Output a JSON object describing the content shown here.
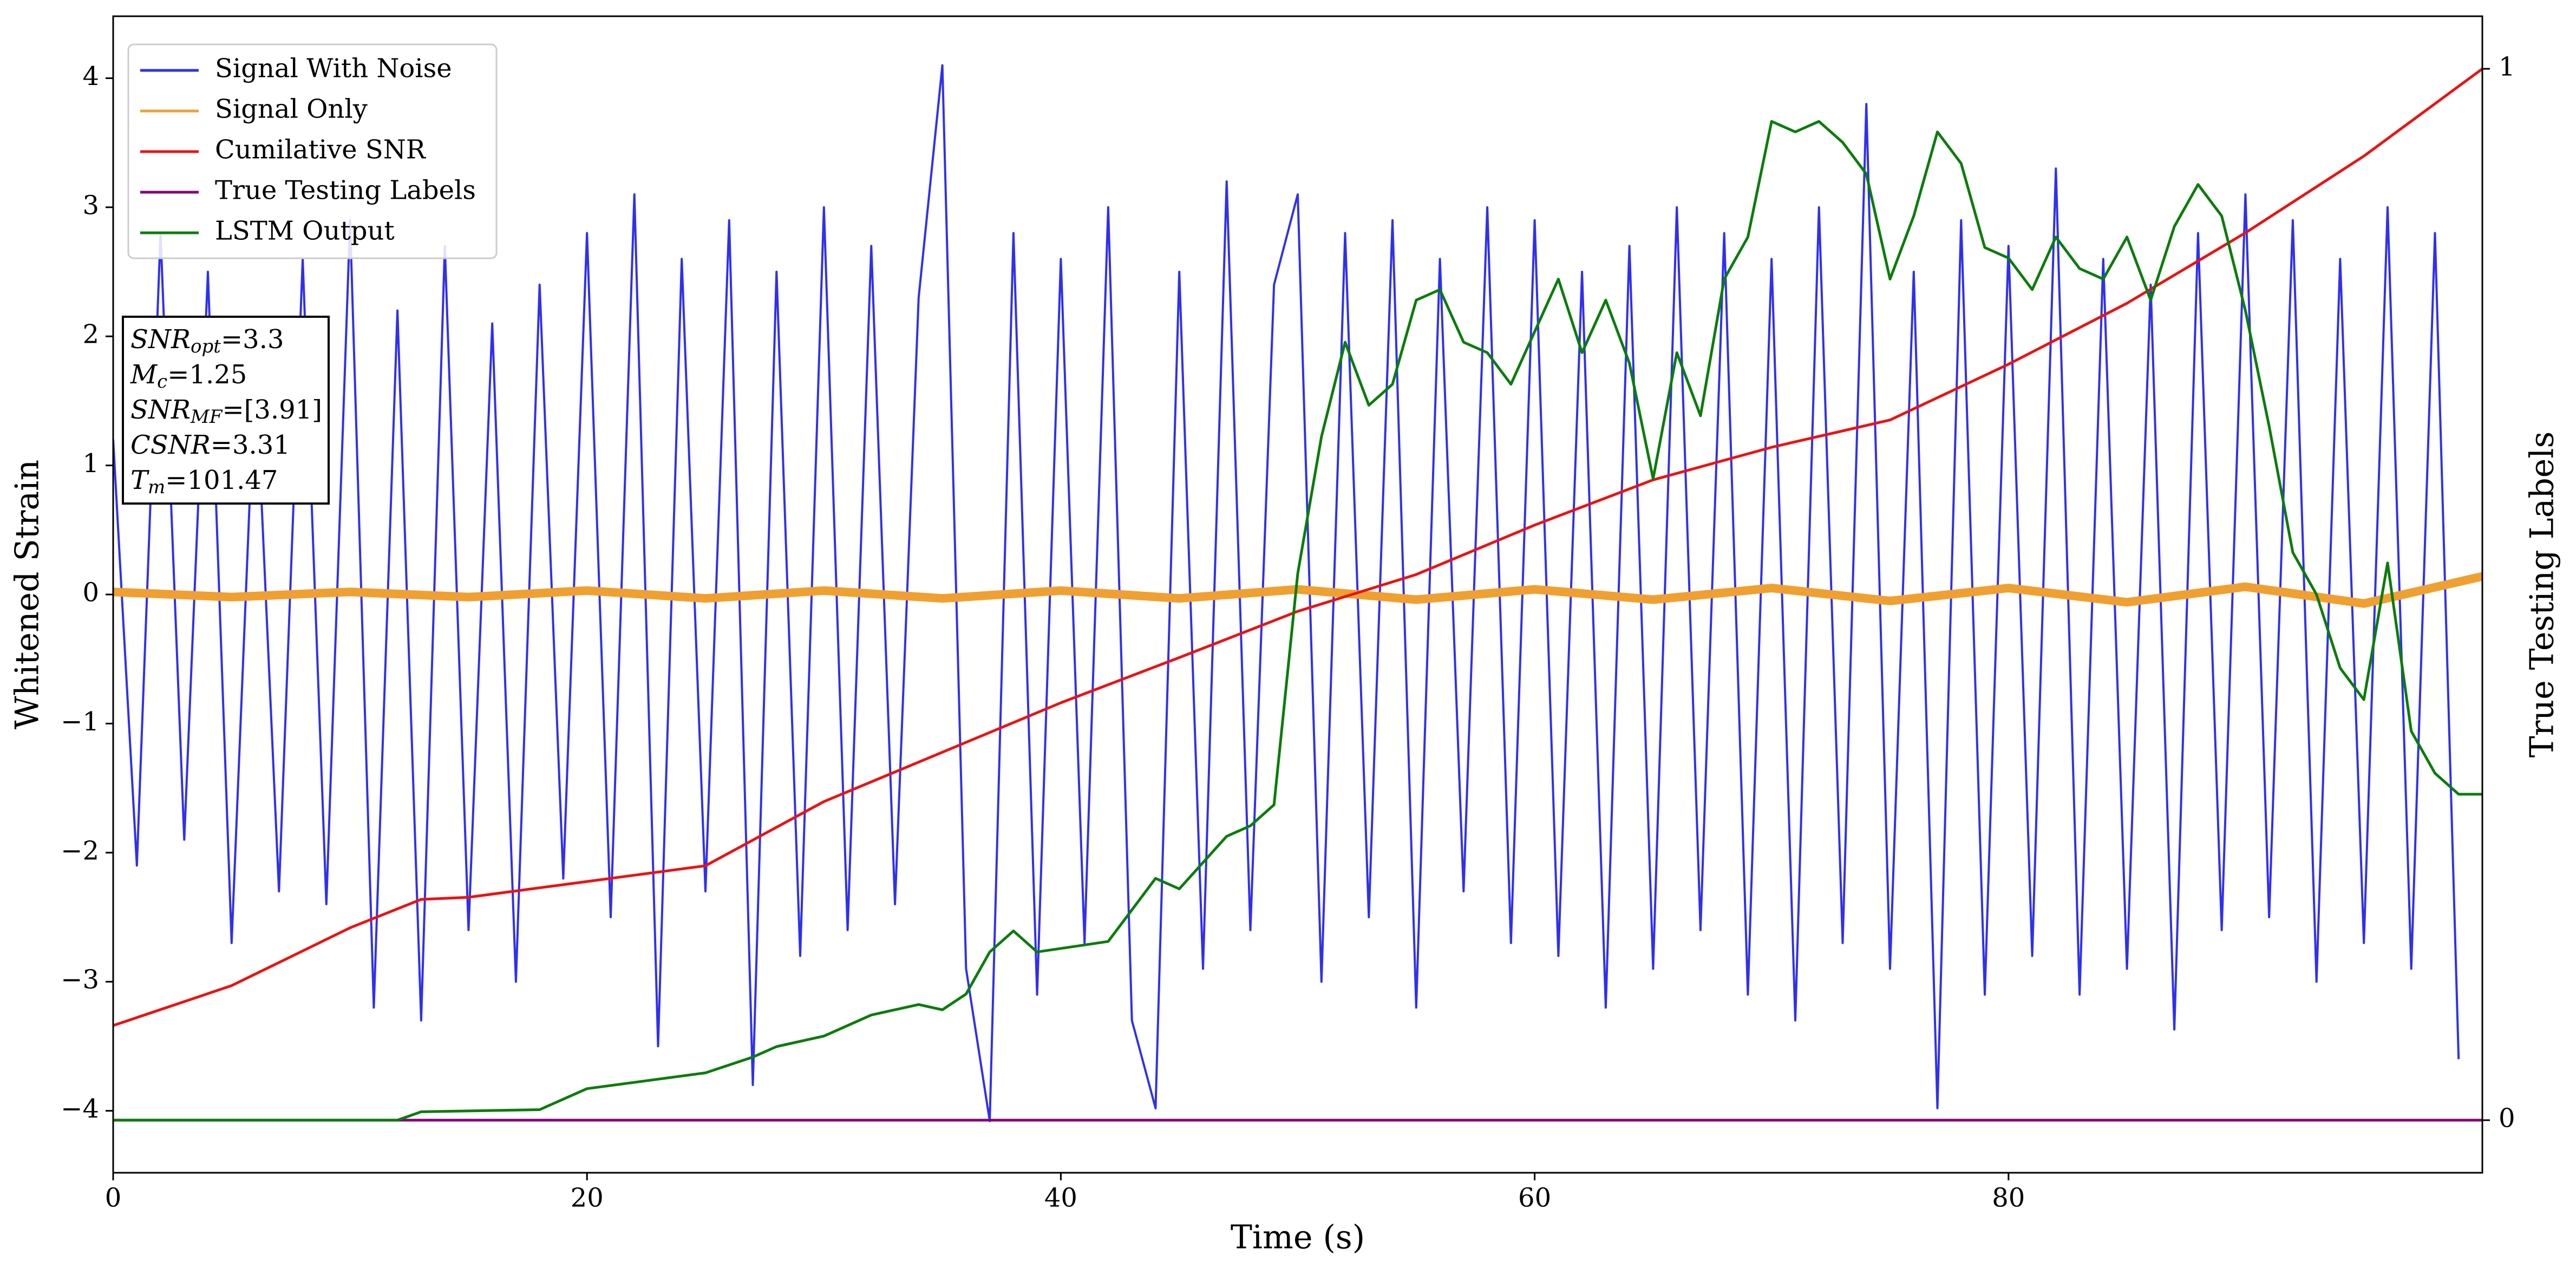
{
  "chart_data": {
    "type": "line",
    "xlabel": "Time (s)",
    "ylabel": "Whitened Strain",
    "y2label": "True Testing Labels",
    "xlim": [
      0,
      100
    ],
    "ylim": [
      -4.48,
      4.48
    ],
    "y2lim": [
      -0.05,
      1.05
    ],
    "xticks": [
      0,
      20,
      40,
      60,
      80
    ],
    "yticks": [
      {
        "value": -4,
        "label": "−4"
      },
      {
        "value": -3,
        "label": "−3"
      },
      {
        "value": -2,
        "label": "−2"
      },
      {
        "value": -1,
        "label": "−1"
      },
      0,
      1,
      2,
      3,
      4
    ],
    "y2ticks": [
      0,
      1
    ],
    "legend": "upper left",
    "annotations": [
      {
        "main": "SNR",
        "sub": "opt",
        "rest": "=3.3"
      },
      {
        "main": "M",
        "sub": "c",
        "rest": "=1.25"
      },
      {
        "main": "SNR",
        "sub": "MF",
        "rest": "=[3.91]"
      },
      {
        "main": "CSNR",
        "rest": "=3.31"
      },
      {
        "main": "T",
        "sub": "m",
        "rest": "=101.47"
      }
    ],
    "series": [
      {
        "name": "Signal With Noise",
        "color": "#2f2ff5",
        "x": [
          0,
          1,
          2,
          3,
          4,
          5,
          6,
          7,
          8,
          9,
          10,
          11,
          12,
          13,
          14,
          15,
          16,
          17,
          18,
          19,
          20,
          21,
          22,
          23,
          24,
          25,
          26,
          27,
          28,
          29,
          30,
          31,
          32,
          33,
          34,
          35,
          36,
          37,
          38,
          39,
          40,
          41,
          42,
          43,
          44,
          45,
          46,
          47,
          48,
          49,
          50,
          51,
          52,
          53,
          54,
          55,
          56,
          57,
          58,
          59,
          60,
          61,
          62,
          63,
          64,
          65,
          66,
          67,
          68,
          69,
          70,
          71,
          72,
          73,
          74,
          75,
          76,
          77,
          78,
          79,
          80,
          81,
          82,
          83,
          84,
          85,
          86,
          87,
          88,
          89,
          90,
          91,
          92,
          93,
          94,
          95,
          96,
          97,
          98,
          99
        ],
        "values": [
          1.2,
          -2.1,
          2.8,
          -1.9,
          2.5,
          -2.7,
          1.8,
          -2.3,
          2.6,
          -2.4,
          2.9,
          -3.2,
          2.2,
          -3.3,
          2.7,
          -2.6,
          2.1,
          -3.0,
          2.4,
          -2.2,
          2.8,
          -2.5,
          3.1,
          -3.5,
          2.6,
          -2.3,
          2.9,
          -3.8,
          2.5,
          -2.8,
          3.0,
          -2.6,
          2.7,
          -2.4,
          2.3,
          4.1,
          -2.9,
          -4.08,
          2.8,
          -3.1,
          2.6,
          -2.7,
          3.0,
          -3.3,
          -3.98,
          2.5,
          -2.9,
          3.2,
          -2.6,
          2.4,
          3.1,
          -3.0,
          2.8,
          -2.5,
          2.9,
          -3.2,
          2.6,
          -2.3,
          3.0,
          -2.7,
          2.9,
          -2.8,
          2.5,
          -3.2,
          2.7,
          -2.9,
          3.0,
          -2.6,
          2.8,
          -3.1,
          2.6,
          -3.3,
          3.0,
          -2.7,
          3.8,
          -2.9,
          2.5,
          -3.98,
          2.9,
          -3.1,
          2.7,
          -2.8,
          3.3,
          -3.1,
          2.6,
          -2.9,
          2.4,
          -3.37,
          2.8,
          -2.6,
          3.1,
          -2.5,
          2.9,
          -3.0,
          2.6,
          -2.7,
          3.0,
          -2.9,
          2.8,
          -3.6
        ]
      },
      {
        "name": "Signal Only",
        "color": "#f0a030",
        "x": [
          0,
          5,
          10,
          15,
          20,
          25,
          30,
          35,
          40,
          45,
          50,
          55,
          60,
          65,
          70,
          75,
          80,
          85,
          90,
          95,
          100
        ],
        "values": [
          0.02,
          -0.02,
          0.02,
          -0.02,
          0.03,
          -0.03,
          0.03,
          -0.03,
          0.03,
          -0.03,
          0.04,
          -0.04,
          0.04,
          -0.04,
          0.05,
          -0.05,
          0.05,
          -0.06,
          0.06,
          -0.07,
          0.14
        ]
      },
      {
        "name": "Cumilative SNR",
        "color": "#ee1111",
        "axis": "y2",
        "x": [
          0,
          5,
          10,
          13,
          15,
          20,
          25,
          30,
          35,
          40,
          45,
          50,
          55,
          60,
          65,
          70,
          75,
          80,
          85,
          90,
          95,
          100
        ],
        "values": [
          0.09,
          0.128,
          0.183,
          0.21,
          0.212,
          0.227,
          0.242,
          0.303,
          0.35,
          0.397,
          0.44,
          0.484,
          0.519,
          0.566,
          0.609,
          0.64,
          0.666,
          0.719,
          0.777,
          0.844,
          0.917,
          1.0
        ]
      },
      {
        "name": "True Testing Labels",
        "color": "#800080",
        "axis": "y2",
        "x": [
          0,
          100
        ],
        "values": [
          0,
          0
        ]
      },
      {
        "name": "LSTM Output",
        "color": "#0a7d0a",
        "axis": "y2",
        "x": [
          0,
          12,
          13,
          18,
          20,
          25,
          27,
          28,
          30,
          32,
          34,
          35,
          36,
          37,
          38,
          39,
          42,
          43,
          44,
          45,
          47,
          48,
          49,
          50,
          51,
          52,
          53,
          54,
          55,
          56,
          57,
          58,
          59,
          61,
          62,
          63,
          64,
          65,
          66,
          67,
          68,
          69,
          70,
          71,
          72,
          73,
          74,
          75,
          76,
          77,
          78,
          79,
          80,
          81,
          82,
          83,
          84,
          85,
          86,
          87,
          88,
          89,
          90,
          91,
          92,
          93,
          94,
          95,
          96,
          97,
          98,
          99,
          100
        ],
        "values": [
          0,
          0,
          0.008,
          0.01,
          0.03,
          0.045,
          0.06,
          0.07,
          0.08,
          0.1,
          0.11,
          0.105,
          0.12,
          0.16,
          0.18,
          0.16,
          0.17,
          0.2,
          0.23,
          0.22,
          0.27,
          0.28,
          0.3,
          0.52,
          0.65,
          0.74,
          0.68,
          0.7,
          0.78,
          0.79,
          0.74,
          0.73,
          0.7,
          0.8,
          0.73,
          0.78,
          0.72,
          0.61,
          0.73,
          0.67,
          0.8,
          0.84,
          0.95,
          0.94,
          0.95,
          0.93,
          0.9,
          0.8,
          0.86,
          0.94,
          0.91,
          0.83,
          0.82,
          0.79,
          0.84,
          0.81,
          0.8,
          0.84,
          0.78,
          0.85,
          0.89,
          0.86,
          0.77,
          0.66,
          0.54,
          0.5,
          0.43,
          0.4,
          0.53,
          0.37,
          0.33,
          0.31,
          0.31
        ]
      }
    ]
  }
}
